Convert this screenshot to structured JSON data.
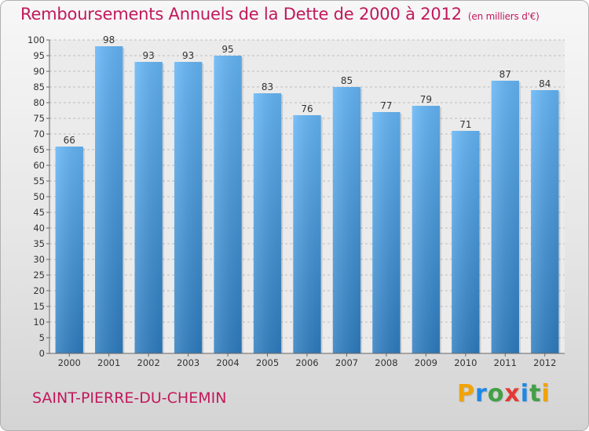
{
  "title": "Remboursements Annuels de la Dette de 2000 à 2012",
  "unit": "(en milliers d'€)",
  "commune": "SAINT-PIERRE-DU-CHEMIN",
  "logo": {
    "letters": [
      {
        "char": "P",
        "color": "#f0a30a"
      },
      {
        "char": "r",
        "color": "#1e88e5"
      },
      {
        "char": "o",
        "color": "#43a047"
      },
      {
        "char": "x",
        "color": "#e53935"
      },
      {
        "char": "i",
        "color": "#1e88e5"
      },
      {
        "char": "t",
        "color": "#43a047"
      },
      {
        "char": "i",
        "color": "#f0a30a"
      }
    ]
  },
  "colors": {
    "bar_top": "#64b5f6",
    "bar_bottom": "#2e7dc0",
    "accent": "#c2185b",
    "grid": "#bdbdbd"
  },
  "chart_data": {
    "type": "bar",
    "categories": [
      "2000",
      "2001",
      "2002",
      "2003",
      "2004",
      "2005",
      "2006",
      "2007",
      "2008",
      "2009",
      "2010",
      "2011",
      "2012"
    ],
    "values": [
      66,
      98,
      93,
      93,
      95,
      83,
      76,
      85,
      77,
      79,
      71,
      87,
      84
    ],
    "ylim": [
      0,
      100
    ],
    "yticks": [
      0,
      5,
      10,
      15,
      20,
      25,
      30,
      35,
      40,
      45,
      50,
      55,
      60,
      65,
      70,
      75,
      80,
      85,
      90,
      95,
      100
    ],
    "grid": true,
    "data_labels": true
  }
}
